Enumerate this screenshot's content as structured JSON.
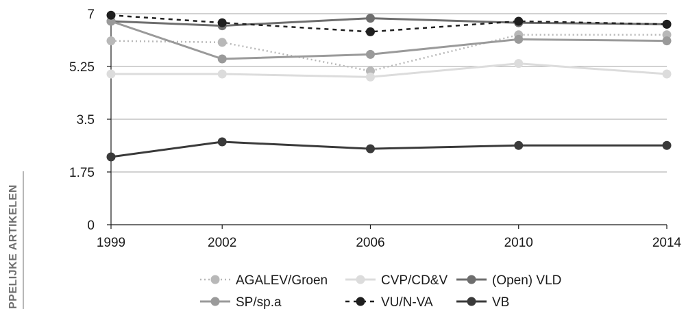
{
  "side_label": "PPELIJKE ARTIKELEN",
  "chart_data": {
    "type": "line",
    "x": [
      1999,
      2002,
      2006,
      2010,
      2014
    ],
    "x_tick_labels": [
      "1999",
      "2002",
      "2006",
      "2010",
      "2014"
    ],
    "y_tick_labels": [
      "0",
      "1.75",
      "3.5",
      "5.25",
      "7"
    ],
    "ylim": [
      0,
      7
    ],
    "grid": "horizontal",
    "legend_placement": "bottom",
    "series": [
      {
        "name": "AGALEV/Groen",
        "values": [
          6.1,
          6.05,
          5.1,
          6.3,
          6.3
        ],
        "color": "#b8b8b8",
        "dash": "dotted"
      },
      {
        "name": "CVP/CD&V",
        "values": [
          5.0,
          5.0,
          4.9,
          5.35,
          5.0
        ],
        "color": "#dcdcdc",
        "dash": "solid"
      },
      {
        "name": "(Open) VLD",
        "values": [
          6.75,
          6.6,
          6.85,
          6.7,
          6.65
        ],
        "color": "#6e6e6e",
        "dash": "solid"
      },
      {
        "name": "SP/sp.a",
        "values": [
          6.75,
          5.5,
          5.65,
          6.15,
          6.1
        ],
        "color": "#9a9a9a",
        "dash": "solid"
      },
      {
        "name": "VU/N-VA",
        "values": [
          6.95,
          6.7,
          6.4,
          6.75,
          6.65
        ],
        "color": "#1f1f1f",
        "dash": "dashed"
      },
      {
        "name": "VB",
        "values": [
          2.25,
          2.75,
          2.52,
          2.63,
          2.63
        ],
        "color": "#3a3a3a",
        "dash": "solid"
      }
    ]
  }
}
